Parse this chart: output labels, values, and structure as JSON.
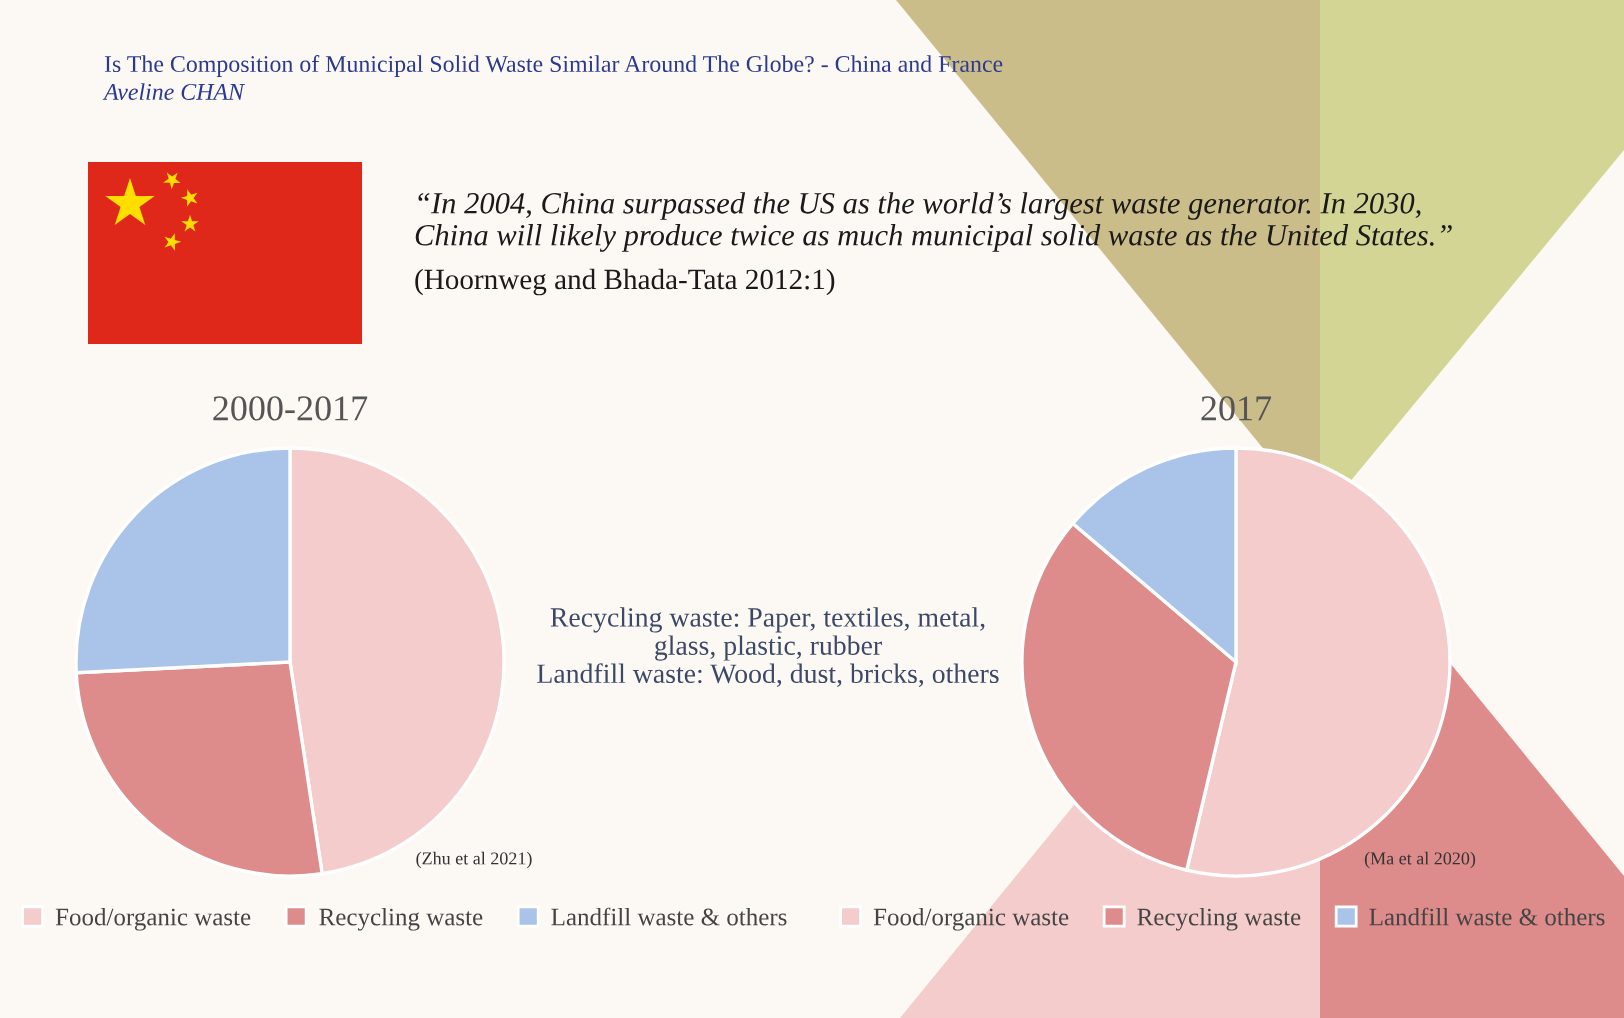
{
  "chart_data": [
    {
      "type": "pie",
      "title": "2000-2017",
      "categories": [
        "Food/organic waste",
        "Recycling waste",
        "Landfill waste & others"
      ],
      "values": [
        47.6,
        26.6,
        25.8
      ],
      "colors": [
        "#f4cccc",
        "#de8b8b",
        "#a9c4e8"
      ],
      "legend": "bottom",
      "annotations": [
        "Is The Composition of Municipal Solid Waste Similar Around The Globe? - China and France",
        "Aveline CHAN",
        "“In 2004, China surpassed the US as the world’s largest waste generator. In 2030,\nChina will likely produce twice as much municipal solid waste as the United States.”",
        "(Hoornweg and Bhada-Tata 2012:1)",
        "Recycling waste: Paper, textiles, metal,\nglass, plastic, rubber\nLandfill waste: Wood, dust, bricks, others",
        "(Zhu et al 2021)"
      ]
    },
    {
      "type": "pie",
      "title": "2017",
      "categories": [
        "Food/organic waste",
        "Recycling waste",
        "Landfill waste & others"
      ],
      "values": [
        53.7,
        32.5,
        13.8
      ],
      "colors": [
        "#f4cccc",
        "#de8b8b",
        "#a9c4e8"
      ],
      "legend": "bottom",
      "annotations": [
        "(Ma et al 2020)"
      ]
    }
  ]
}
